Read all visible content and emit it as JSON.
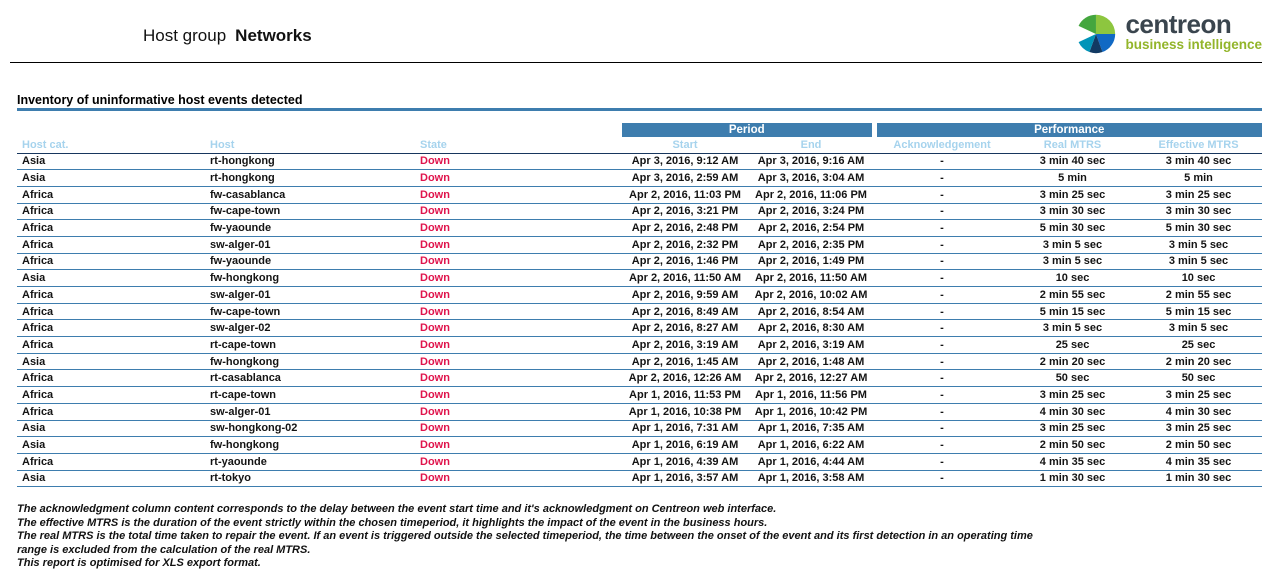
{
  "colors": {
    "header_blue": "#3e7dae",
    "subheader_text": "#a6d3ed",
    "state_down": "#e0144c",
    "row_line": "#3e7dae",
    "header_line": "#17365d",
    "logo_text": "#3a454e",
    "logo_green": "#93b52a"
  },
  "header": {
    "title_prefix": "Host group",
    "title_name": "Networks",
    "logo_name": "centreon",
    "logo_tagline": "business intelligence"
  },
  "section": {
    "title": "Inventory of uninformative host events detected"
  },
  "table": {
    "group_headers": {
      "period": "Period",
      "performance": "Performance"
    },
    "columns": [
      "Host cat.",
      "Host",
      "State",
      "Start",
      "End",
      "Acknowledgement",
      "Real MTRS",
      "Effective MTRS"
    ],
    "column_keys": [
      "host-cat",
      "host",
      "state",
      "start",
      "end",
      "acknowledgement",
      "real-mtrs",
      "effective-mtrs"
    ],
    "rows": [
      [
        "Asia",
        "rt-hongkong",
        "Down",
        "Apr 3, 2016, 9:12 AM",
        "Apr 3, 2016, 9:16 AM",
        "-",
        "3 min 40 sec",
        "3 min 40 sec"
      ],
      [
        "Asia",
        "rt-hongkong",
        "Down",
        "Apr 3, 2016, 2:59 AM",
        "Apr 3, 2016, 3:04 AM",
        "-",
        "5 min",
        "5 min"
      ],
      [
        "Africa",
        "fw-casablanca",
        "Down",
        "Apr 2, 2016, 11:03 PM",
        "Apr 2, 2016, 11:06 PM",
        "-",
        "3 min 25 sec",
        "3 min 25 sec"
      ],
      [
        "Africa",
        "fw-cape-town",
        "Down",
        "Apr 2, 2016, 3:21 PM",
        "Apr 2, 2016, 3:24 PM",
        "-",
        "3 min 30 sec",
        "3 min 30 sec"
      ],
      [
        "Africa",
        "fw-yaounde",
        "Down",
        "Apr 2, 2016, 2:48 PM",
        "Apr 2, 2016, 2:54 PM",
        "-",
        "5 min 30 sec",
        "5 min 30 sec"
      ],
      [
        "Africa",
        "sw-alger-01",
        "Down",
        "Apr 2, 2016, 2:32 PM",
        "Apr 2, 2016, 2:35 PM",
        "-",
        "3 min 5 sec",
        "3 min 5 sec"
      ],
      [
        "Africa",
        "fw-yaounde",
        "Down",
        "Apr 2, 2016, 1:46 PM",
        "Apr 2, 2016, 1:49 PM",
        "-",
        "3 min 5 sec",
        "3 min 5 sec"
      ],
      [
        "Asia",
        "fw-hongkong",
        "Down",
        "Apr 2, 2016, 11:50 AM",
        "Apr 2, 2016, 11:50 AM",
        "-",
        "10 sec",
        "10 sec"
      ],
      [
        "Africa",
        "sw-alger-01",
        "Down",
        "Apr 2, 2016, 9:59 AM",
        "Apr 2, 2016, 10:02 AM",
        "-",
        "2 min 55 sec",
        "2 min 55 sec"
      ],
      [
        "Africa",
        "fw-cape-town",
        "Down",
        "Apr 2, 2016, 8:49 AM",
        "Apr 2, 2016, 8:54 AM",
        "-",
        "5 min 15 sec",
        "5 min 15 sec"
      ],
      [
        "Africa",
        "sw-alger-02",
        "Down",
        "Apr 2, 2016, 8:27 AM",
        "Apr 2, 2016, 8:30 AM",
        "-",
        "3 min 5 sec",
        "3 min 5 sec"
      ],
      [
        "Africa",
        "rt-cape-town",
        "Down",
        "Apr 2, 2016, 3:19 AM",
        "Apr 2, 2016, 3:19 AM",
        "-",
        "25 sec",
        "25 sec"
      ],
      [
        "Asia",
        "fw-hongkong",
        "Down",
        "Apr 2, 2016, 1:45 AM",
        "Apr 2, 2016, 1:48 AM",
        "-",
        "2 min 20 sec",
        "2 min 20 sec"
      ],
      [
        "Africa",
        "rt-casablanca",
        "Down",
        "Apr 2, 2016, 12:26 AM",
        "Apr 2, 2016, 12:27 AM",
        "-",
        "50 sec",
        "50 sec"
      ],
      [
        "Africa",
        "rt-cape-town",
        "Down",
        "Apr 1, 2016, 11:53 PM",
        "Apr 1, 2016, 11:56 PM",
        "-",
        "3 min 25 sec",
        "3 min 25 sec"
      ],
      [
        "Africa",
        "sw-alger-01",
        "Down",
        "Apr 1, 2016, 10:38 PM",
        "Apr 1, 2016, 10:42 PM",
        "-",
        "4 min 30 sec",
        "4 min 30 sec"
      ],
      [
        "Asia",
        "sw-hongkong-02",
        "Down",
        "Apr 1, 2016, 7:31 AM",
        "Apr 1, 2016, 7:35 AM",
        "-",
        "3 min 25 sec",
        "3 min 25 sec"
      ],
      [
        "Asia",
        "fw-hongkong",
        "Down",
        "Apr 1, 2016, 6:19 AM",
        "Apr 1, 2016, 6:22 AM",
        "-",
        "2 min 50 sec",
        "2 min 50 sec"
      ],
      [
        "Africa",
        "rt-yaounde",
        "Down",
        "Apr 1, 2016, 4:39 AM",
        "Apr 1, 2016, 4:44 AM",
        "-",
        "4 min 35 sec",
        "4 min 35 sec"
      ],
      [
        "Asia",
        "rt-tokyo",
        "Down",
        "Apr 1, 2016, 3:57 AM",
        "Apr 1, 2016, 3:58 AM",
        "-",
        "1 min 30 sec",
        "1 min 30 sec"
      ]
    ]
  },
  "footnotes": [
    "The acknowledgment column content corresponds to the delay between the event start time and it's acknowledgment on Centreon web interface.",
    "The effective MTRS is the duration of the event strictly within the chosen timeperiod, it highlights the impact of the event in the business hours.",
    "The real MTRS is the total time taken to repair the event. If an event is triggered outside the selected timeperiod, the time between the onset of the event and its first detection in an operating time",
    "range  is excluded from the calculation of the real MTRS.",
    "This report is optimised for XLS export format."
  ]
}
